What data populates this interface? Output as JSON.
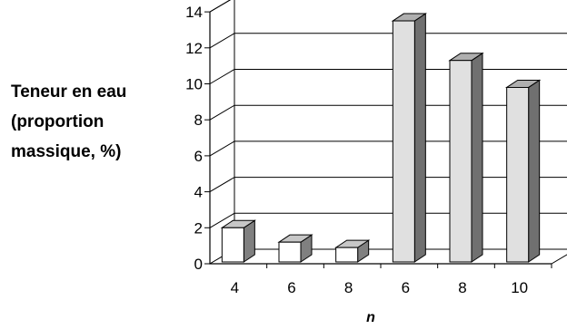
{
  "chart_data": {
    "type": "bar",
    "categories": [
      "4",
      "6",
      "8",
      "6",
      "8",
      "10"
    ],
    "values": [
      2.0,
      1.2,
      0.9,
      13.5,
      11.3,
      9.8
    ],
    "bar_colors": [
      "#ffffff",
      "#ffffff",
      "#ffffff",
      "#e0e0e0",
      "#e0e0e0",
      "#e0e0e0"
    ],
    "title": "",
    "xlabel": "n",
    "ylabel_lines": [
      "Teneur en eau",
      "(proportion",
      "massique, %)"
    ],
    "ylim": [
      0,
      14
    ],
    "yticks": [
      "0",
      "2",
      "4",
      "6",
      "8",
      "10",
      "12",
      "14"
    ],
    "grid": true,
    "style": "3d"
  }
}
